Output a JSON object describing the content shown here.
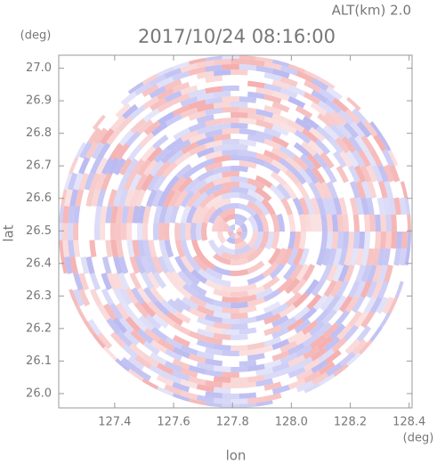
{
  "chart_data": {
    "type": "radar-ppi",
    "title": "2017/10/24 08:16:00",
    "subtitle": "ALT(km) 2.0",
    "x_label": "lon",
    "y_label": "lat",
    "x_unit": "(deg)",
    "y_unit": "(deg)",
    "xlim": [
      127.21,
      128.41
    ],
    "ylim": [
      25.956,
      27.04
    ],
    "xticks": [
      127.4,
      127.6,
      127.8,
      {
        "value": 128,
        "label": "128.0"
      },
      128.2,
      128.4
    ],
    "yticks": [
      {
        "value": 26,
        "label": "26.0"
      },
      26.1,
      26.2,
      26.3,
      26.4,
      26.5,
      26.6,
      26.7,
      26.8,
      26.9,
      {
        "value": 27,
        "label": "27.0"
      }
    ]
  }
}
